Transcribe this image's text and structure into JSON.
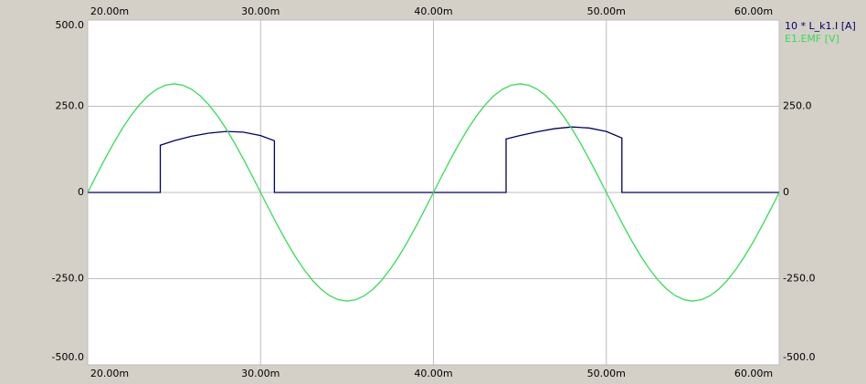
{
  "chart_data": {
    "type": "line",
    "xlim": [
      20,
      60
    ],
    "xticks": [
      {
        "value": 20,
        "label": "20.00m"
      },
      {
        "value": 30,
        "label": "30.00m"
      },
      {
        "value": 40,
        "label": "40.00m"
      },
      {
        "value": 50,
        "label": "50.00m"
      },
      {
        "value": 60,
        "label": "60.00m"
      }
    ],
    "ylim": [
      -500,
      500
    ],
    "yticks": [
      {
        "value": 500,
        "label": "500.0"
      },
      {
        "value": 250,
        "label": "250.0"
      },
      0,
      {
        "value": -250,
        "label": "-250.0"
      },
      {
        "value": -500,
        "label": "-500.0"
      }
    ],
    "y2lim": [
      -500,
      500
    ],
    "y2ticks": [
      {
        "value": 250,
        "label": "250.0"
      },
      0,
      {
        "value": -250,
        "label": "-250.0"
      },
      {
        "value": -500,
        "label": "-500.0"
      }
    ],
    "grid": true,
    "legend": "top-right",
    "series": [
      {
        "name": "10 * L_k1.I [A]",
        "color": "#000066",
        "x": [
          20,
          24.2,
          24.2,
          25,
          26,
          27,
          28,
          29,
          30,
          30.8,
          30.8,
          44.2,
          44.2,
          45,
          46,
          47,
          48,
          49,
          50,
          50.9,
          50.9,
          60
        ],
        "values": [
          0,
          0,
          137,
          150,
          163,
          172,
          177,
          175,
          165,
          150,
          0,
          0,
          155,
          165,
          176,
          185,
          190,
          187,
          177,
          158,
          0,
          0
        ]
      },
      {
        "name": "E1.EMF [V]",
        "color": "#33dd55",
        "x": [
          20,
          20.5,
          21,
          21.5,
          22,
          22.5,
          23,
          23.5,
          24,
          24.5,
          25,
          25.5,
          26,
          26.5,
          27,
          27.5,
          28,
          28.5,
          29,
          29.5,
          30,
          30.5,
          31,
          31.5,
          32,
          32.5,
          33,
          33.5,
          34,
          34.5,
          35,
          35.5,
          36,
          36.5,
          37,
          37.5,
          38,
          38.5,
          39,
          39.5,
          40,
          40.5,
          41,
          41.5,
          42,
          42.5,
          43,
          43.5,
          44,
          44.5,
          45,
          45.5,
          46,
          46.5,
          47,
          47.5,
          48,
          48.5,
          49,
          49.5,
          50,
          50.5,
          51,
          51.5,
          52,
          52.5,
          53,
          53.5,
          54,
          54.5,
          55,
          55.5,
          56,
          56.5,
          57,
          57.5,
          58,
          58.5,
          59,
          59.5,
          60
        ],
        "values": [
          0,
          49.3,
          97.3,
          143.0,
          185.2,
          222.7,
          254.8,
          280.7,
          299.6,
          311.1,
          315,
          311.1,
          299.6,
          280.7,
          254.8,
          222.7,
          185.2,
          143.0,
          97.3,
          49.3,
          0,
          -49.3,
          -97.3,
          -143.0,
          -185.2,
          -222.7,
          -254.8,
          -280.7,
          -299.6,
          -311.1,
          -315,
          -311.1,
          -299.6,
          -280.7,
          -254.8,
          -222.7,
          -185.2,
          -143.0,
          -97.3,
          -49.3,
          0,
          49.3,
          97.3,
          143.0,
          185.2,
          222.7,
          254.8,
          280.7,
          299.6,
          311.1,
          315,
          311.1,
          299.6,
          280.7,
          254.8,
          222.7,
          185.2,
          143.0,
          97.3,
          49.3,
          0,
          -49.3,
          -97.3,
          -143.0,
          -185.2,
          -222.7,
          -254.8,
          -280.7,
          -299.6,
          -311.1,
          -315,
          -311.1,
          -299.6,
          -280.7,
          -254.8,
          -222.7,
          -185.2,
          -143.0,
          -97.3,
          -49.3,
          0
        ]
      }
    ]
  }
}
